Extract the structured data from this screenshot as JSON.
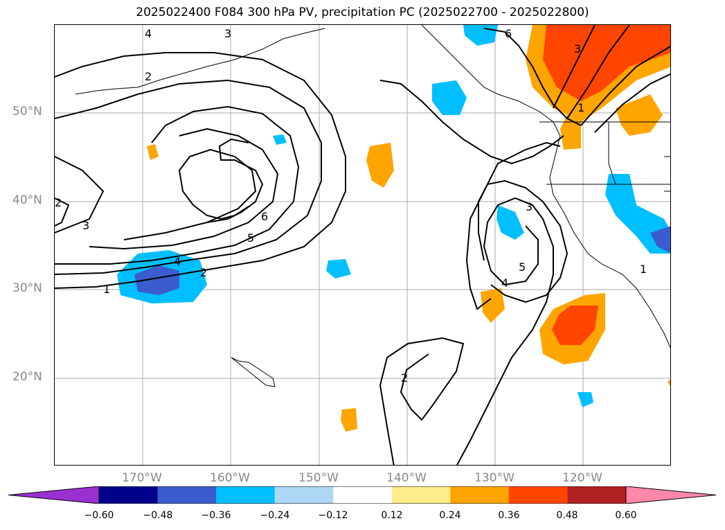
{
  "title": "2025022400 F084 300 hPa PV, precipitation PC (2025022700 - 2025022800)",
  "lat_labels": [
    "50°N",
    "40°N",
    "30°N",
    "20°N"
  ],
  "lon_labels": [
    "170°W",
    "160°W",
    "150°W",
    "140°W",
    "130°W",
    "120°W"
  ],
  "contour_labels": [
    "4",
    "3",
    "2",
    "6",
    "2",
    "3",
    "6",
    "5",
    "4",
    "2",
    "1",
    "3",
    "4",
    "5",
    "2",
    "3",
    "1",
    "1"
  ],
  "colorbar": {
    "ticks": [
      "−0.60",
      "−0.48",
      "−0.36",
      "−0.24",
      "−0.12",
      "0.12",
      "0.24",
      "0.36",
      "0.48",
      "0.60"
    ],
    "colors": [
      "#9b30d0",
      "#00008b",
      "#3b5ccc",
      "#00bfff",
      "#add8f5",
      "#ffffff",
      "#ffec8b",
      "#ffa500",
      "#ff4500",
      "#b22222",
      "#ff88aa"
    ]
  }
}
